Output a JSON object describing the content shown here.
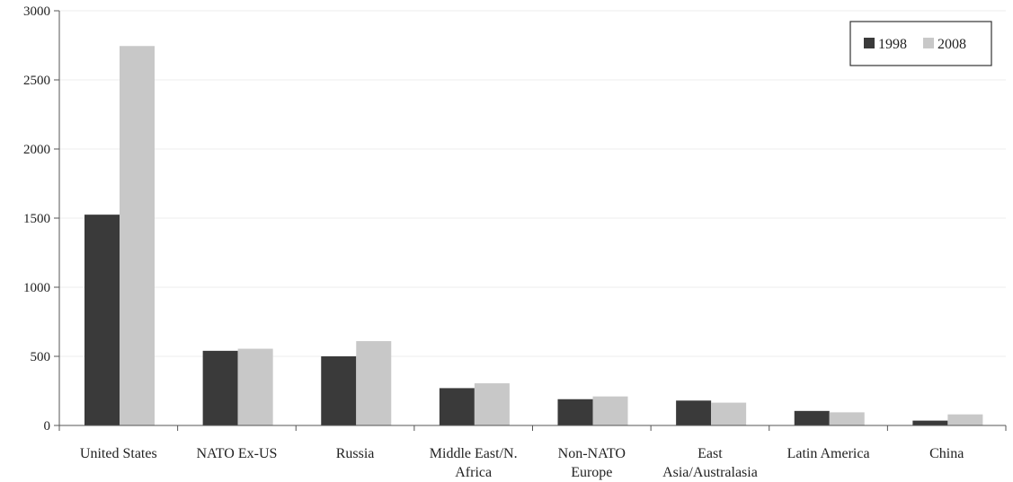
{
  "chart_data": {
    "type": "bar",
    "categories": [
      [
        "United States"
      ],
      [
        "NATO Ex-US"
      ],
      [
        "Russia"
      ],
      [
        "Middle East/N.",
        "Africa"
      ],
      [
        "Non-NATO",
        "Europe"
      ],
      [
        "East",
        "Asia/Australasia"
      ],
      [
        "Latin America"
      ],
      [
        "China"
      ]
    ],
    "series": [
      {
        "name": "1998",
        "color": "#3a3a3a",
        "values": [
          1525,
          540,
          500,
          270,
          190,
          180,
          105,
          35
        ]
      },
      {
        "name": "2008",
        "color": "#c8c8c8",
        "values": [
          2745,
          555,
          610,
          305,
          210,
          165,
          95,
          80
        ]
      }
    ],
    "yticks": [
      "0",
      "500",
      "1000",
      "1500",
      "2000",
      "2500",
      "3000"
    ],
    "ylim": [
      0,
      3000
    ],
    "grid": true,
    "legend_position": "top-right"
  }
}
